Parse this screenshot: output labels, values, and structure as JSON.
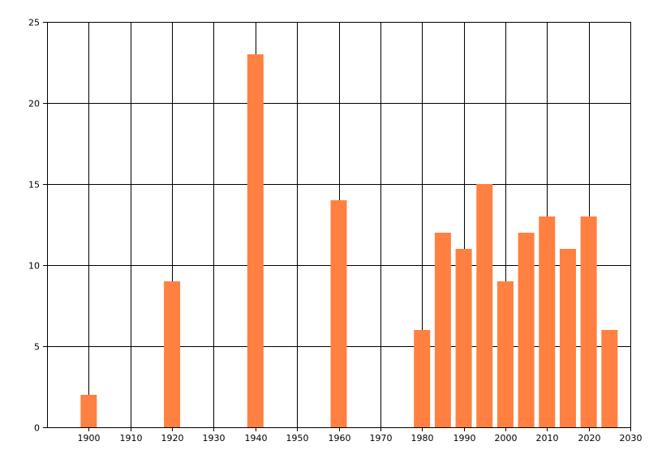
{
  "chart_data": {
    "type": "bar",
    "x": [
      1900,
      1920,
      1940,
      1960,
      1980,
      1985,
      1990,
      1995,
      2000,
      2005,
      2010,
      2015,
      2020,
      2025
    ],
    "values": [
      2,
      9,
      23,
      14,
      6,
      12,
      11,
      15,
      9,
      12,
      13,
      11,
      13,
      6
    ],
    "xlim": [
      1890,
      2030
    ],
    "ylim": [
      0,
      25
    ],
    "x_ticks": [
      1900,
      1910,
      1920,
      1930,
      1940,
      1950,
      1960,
      1970,
      1980,
      1990,
      2000,
      2010,
      2020,
      2030
    ],
    "y_ticks": [
      0,
      5,
      10,
      15,
      20,
      25
    ],
    "x_tick_labels": [
      "1900",
      "1910",
      "1920",
      "1930",
      "1940",
      "1950",
      "1960",
      "1970",
      "1980",
      "1990",
      "2000",
      "2010",
      "2020",
      "2030"
    ],
    "y_tick_labels": [
      "0",
      "5",
      "10",
      "15",
      "20",
      "25"
    ],
    "grid": true,
    "bar_color": "#ff8040",
    "grid_color": "#000000"
  }
}
